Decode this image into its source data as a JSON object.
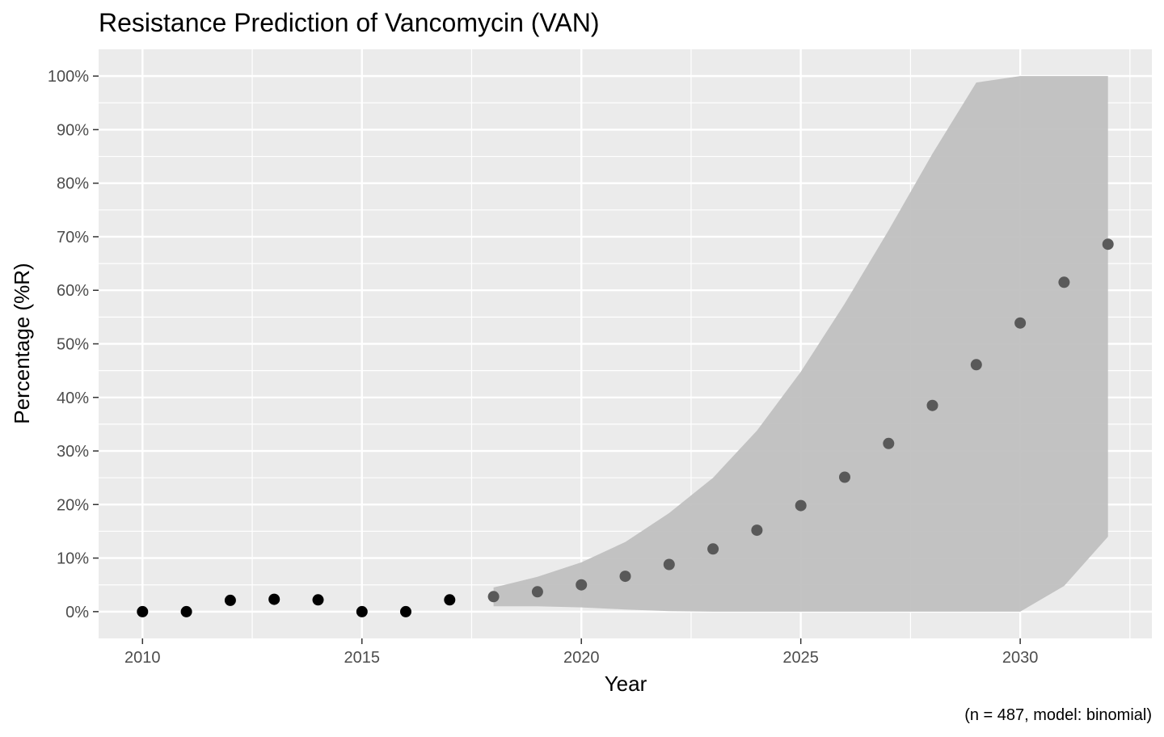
{
  "chart_data": {
    "type": "scatter",
    "title": "Resistance Prediction of Vancomycin (VAN)",
    "xlabel": "Year",
    "ylabel": "Percentage (%R)",
    "caption": "(n = 487, model: binomial)",
    "xlim": [
      2009,
      2033
    ],
    "ylim": [
      -5,
      105
    ],
    "x_ticks": [
      2010,
      2015,
      2020,
      2025,
      2030
    ],
    "x_tick_labels": [
      "2010",
      "2015",
      "2020",
      "2025",
      "2030"
    ],
    "y_ticks": [
      0,
      10,
      20,
      30,
      40,
      50,
      60,
      70,
      80,
      90,
      100
    ],
    "y_tick_labels": [
      "0%",
      "10%",
      "20%",
      "30%",
      "40%",
      "50%",
      "60%",
      "70%",
      "80%",
      "90%",
      "100%"
    ],
    "grid": true,
    "series": [
      {
        "role": "observed",
        "color": "#000000",
        "x": [
          2010,
          2011,
          2012,
          2013,
          2014,
          2015,
          2016,
          2017
        ],
        "y": [
          0,
          0,
          2.1,
          2.3,
          2.2,
          0,
          0,
          2.2
        ]
      },
      {
        "role": "predicted",
        "color": "#595959",
        "x": [
          2018,
          2019,
          2020,
          2021,
          2022,
          2023,
          2024,
          2025,
          2026,
          2027,
          2028,
          2029,
          2030,
          2031,
          2032
        ],
        "y": [
          2.8,
          3.7,
          5.0,
          6.6,
          8.8,
          11.7,
          15.2,
          19.8,
          25.1,
          31.4,
          38.5,
          46.1,
          53.9,
          61.5,
          68.6
        ]
      }
    ],
    "interval": {
      "color": "#bebebe",
      "x": [
        2018,
        2019,
        2020,
        2021,
        2022,
        2023,
        2024,
        2025,
        2026,
        2027,
        2028,
        2029,
        2030,
        2031,
        2032
      ],
      "lower": [
        1.0,
        1.0,
        0.8,
        0.4,
        0.1,
        0,
        0,
        0,
        0,
        0,
        0,
        0,
        0,
        4.8,
        14.0
      ],
      "upper": [
        4.5,
        6.5,
        9.2,
        13.0,
        18.4,
        25.0,
        33.8,
        44.8,
        57.5,
        71.2,
        85.5,
        98.8,
        100,
        100,
        100
      ]
    }
  }
}
